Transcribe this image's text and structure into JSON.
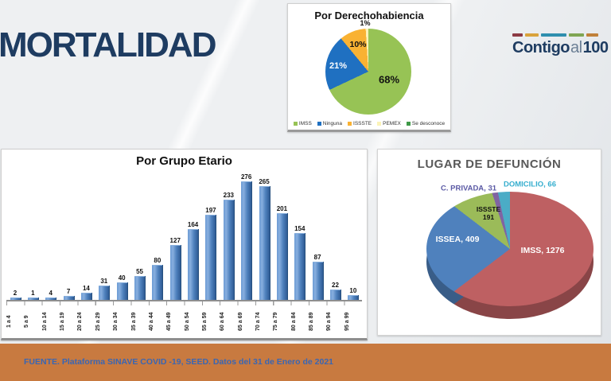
{
  "slide": {
    "title": "MORTALIDAD",
    "logo": {
      "word1": "Contigo",
      "word2": "al",
      "word3": "100"
    },
    "footer_text": "FUENTE. Plataforma SINAVE COVID -19, SEED. Datos del 31 de Enero de 2021",
    "colors": {
      "accent_navy": "#1E3C61",
      "footer_bg": "#C87A40",
      "footer_text": "#3A66B3"
    }
  },
  "chart_data": [
    {
      "type": "pie",
      "title": "Por Derechohabiencia",
      "labels": [
        "IMSS",
        "Ninguna",
        "ISSSTE",
        "PEMEX",
        "Se desconoce"
      ],
      "values_pct": [
        68,
        21,
        10,
        1,
        0
      ],
      "colors": [
        "#97C355",
        "#1F70C1",
        "#F9B233",
        "#FBF3B8",
        "#3F9948"
      ],
      "slice_labels": [
        "68%",
        "21%",
        "10%",
        "1%"
      ],
      "legend_position": "bottom"
    },
    {
      "type": "bar",
      "title": "Por Grupo Etario",
      "categories": [
        "1 a 4",
        "5 a 9",
        "10 a 14",
        "15 a 19",
        "20 a 24",
        "25 a 29",
        "30 a 34",
        "35 a 39",
        "40 a 44",
        "45 a 49",
        "50 a 54",
        "55 a 59",
        "60 a 64",
        "65 a 69",
        "70 a 74",
        "75 a 79",
        "80 a 84",
        "85 a 89",
        "90 a 94",
        "95 a 99"
      ],
      "values": [
        2,
        1,
        4,
        7,
        14,
        31,
        40,
        55,
        80,
        127,
        164,
        197,
        233,
        276,
        265,
        201,
        154,
        87,
        22,
        10
      ],
      "bar_color": "#4F81BD",
      "ylim": [
        0,
        276
      ],
      "grid": false,
      "value_labels": true
    },
    {
      "type": "pie",
      "style": "3d",
      "title": "LUGAR DE DEFUNCIÓN",
      "labels": [
        "IMSS",
        "ISSEA",
        "ISSSTE",
        "C. PRIVADA",
        "DOMICILIO"
      ],
      "values": [
        1276,
        409,
        191,
        31,
        66
      ],
      "colors": [
        "#BE6062",
        "#4F81BD",
        "#9BBB59",
        "#8064A2",
        "#4BACC6"
      ],
      "data_labels": {
        "imss": "IMSS, 1276",
        "issea": "ISSEA, 409",
        "issste_line1": "ISSSTE",
        "issste_line2": "191",
        "c_privada": "C. PRIVADA, 31",
        "domicilio": "DOMICILIO, 66"
      },
      "label_colors": {
        "c_privada": "#5B5AA5",
        "domicilio": "#36AECE"
      }
    }
  ]
}
